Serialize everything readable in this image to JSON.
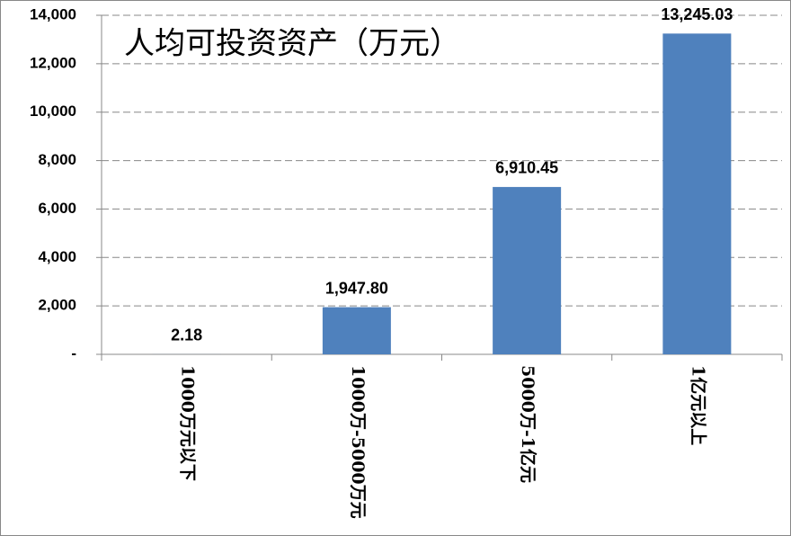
{
  "chart_data": {
    "type": "bar",
    "title": "人均可投资资产（万元）",
    "categories": [
      "1000万元以下",
      "1000万-5000万元",
      "5000万-1亿元",
      "1亿元以上"
    ],
    "values": [
      2.18,
      1947.8,
      6910.45,
      13245.03
    ],
    "value_labels": [
      "2.18",
      "1,947.80",
      "6,910.45",
      "13,245.03"
    ],
    "color": "#4f81bd",
    "ylim": [
      0,
      14000
    ],
    "yticks": [
      {
        "value": 0,
        "label": "-"
      },
      {
        "value": 2000,
        "label": "2,000"
      },
      {
        "value": 4000,
        "label": "4,000"
      },
      {
        "value": 6000,
        "label": "6,000"
      },
      {
        "value": 8000,
        "label": "8,000"
      },
      {
        "value": 10000,
        "label": "10,000"
      },
      {
        "value": 12000,
        "label": "12,000"
      },
      {
        "value": 14000,
        "label": "14,000"
      }
    ],
    "grid": true
  }
}
